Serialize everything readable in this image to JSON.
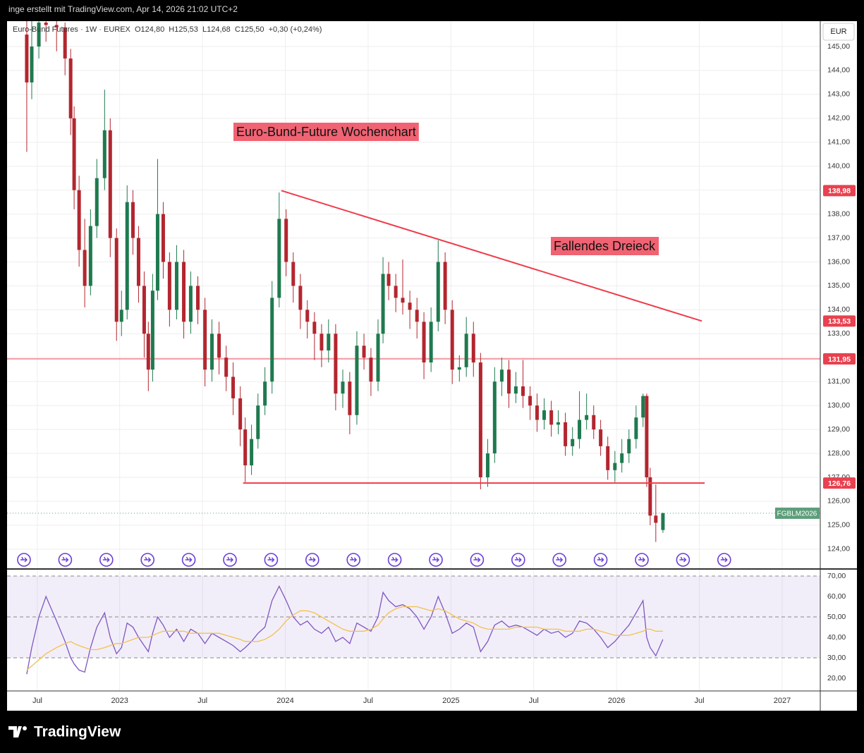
{
  "page": {
    "attribution": "inge erstellt mit TradingView.com, Apr 14, 2026 21:02 UTC+2",
    "brand": "TradingView"
  },
  "chart_data": [
    {
      "type": "candlestick",
      "legend_text": "Euro-Bund Futures · 1W · EUREX  O124,80  H125,53  L124,68  C125,50  +0,30 (+0,24%)",
      "currency": "EUR",
      "up_color": "#1f7a4f",
      "down_color": "#b3262f",
      "x": [
        2022.439,
        2022.469,
        2022.512,
        2022.555,
        2022.619,
        2022.67,
        2022.704,
        2022.725,
        2022.755,
        2022.789,
        2022.824,
        2022.862,
        2022.909,
        2022.943,
        2022.981,
        2023.011,
        2023.045,
        2023.08,
        2023.114,
        2023.148,
        2023.173,
        2023.199,
        2023.229,
        2023.263,
        2023.301,
        2023.344,
        2023.387,
        2023.429,
        2023.472,
        2023.515,
        2023.557,
        2023.6,
        2023.643,
        2023.685,
        2023.728,
        2023.758,
        2023.796,
        2023.835,
        2023.877,
        2023.92,
        2023.963,
        2024.005,
        2024.048,
        2024.091,
        2024.133,
        2024.176,
        2024.219,
        2024.261,
        2024.304,
        2024.347,
        2024.389,
        2024.432,
        2024.475,
        2024.517,
        2024.56,
        2024.59,
        2024.624,
        2024.667,
        2024.709,
        2024.752,
        2024.795,
        2024.837,
        2024.88,
        2024.923,
        2024.965,
        2025.008,
        2025.051,
        2025.093,
        2025.136,
        2025.179,
        2025.222,
        2025.264,
        2025.307,
        2025.35,
        2025.392,
        2025.435,
        2025.478,
        2025.52,
        2025.563,
        2025.606,
        2025.648,
        2025.691,
        2025.734,
        2025.776,
        2025.819,
        2025.862,
        2025.904,
        2025.947,
        2025.99,
        2026.032,
        2026.075,
        2026.118,
        2026.16,
        2026.182,
        2026.203,
        2026.237,
        2026.28
      ],
      "ohlc": [
        [
          145.5,
          146.1,
          140.6,
          143.5
        ],
        [
          143.5,
          146.1,
          142.8,
          145
        ],
        [
          145,
          146.1,
          144.5,
          146
        ],
        [
          146,
          146.1,
          145.2,
          145.9
        ],
        [
          145.9,
          146.1,
          144.8,
          145.8
        ],
        [
          145.8,
          146,
          143.8,
          144.5
        ],
        [
          144.5,
          144.9,
          141.3,
          142
        ],
        [
          142,
          142.5,
          138.2,
          139
        ],
        [
          139,
          139.6,
          135.8,
          136.5
        ],
        [
          136.5,
          137.8,
          134.1,
          135
        ],
        [
          135,
          138.2,
          134.6,
          137.5
        ],
        [
          137.5,
          140.3,
          137,
          139.5
        ],
        [
          139.5,
          143.2,
          139,
          141.5
        ],
        [
          141.5,
          142,
          136.2,
          137
        ],
        [
          137,
          137.4,
          132.7,
          133.5
        ],
        [
          133.5,
          134.8,
          132.9,
          134
        ],
        [
          134,
          139.2,
          133.6,
          138.5
        ],
        [
          138.5,
          139,
          136.3,
          137
        ],
        [
          137,
          137.5,
          134.3,
          135
        ],
        [
          135,
          135.6,
          132,
          133
        ],
        [
          133,
          133.5,
          130.6,
          131.5
        ],
        [
          131.5,
          135.5,
          131,
          134.8
        ],
        [
          134.8,
          140.3,
          134.4,
          138
        ],
        [
          138,
          138.5,
          135.3,
          136
        ],
        [
          136,
          136.4,
          133.3,
          134
        ],
        [
          134,
          136.7,
          133.6,
          136
        ],
        [
          136,
          136.5,
          132.8,
          133.5
        ],
        [
          133.5,
          135.6,
          133,
          135
        ],
        [
          135,
          135.4,
          133.4,
          134
        ],
        [
          134,
          134.5,
          130.8,
          131.5
        ],
        [
          131.5,
          133.6,
          131,
          133
        ],
        [
          133,
          133.5,
          131.3,
          132
        ],
        [
          132,
          132.5,
          130.6,
          131.2
        ],
        [
          131.2,
          131.8,
          129.6,
          130.3
        ],
        [
          130.3,
          130.8,
          128.3,
          129
        ],
        [
          129,
          129.5,
          126.8,
          127.5
        ],
        [
          127.5,
          129.2,
          127.1,
          128.6
        ],
        [
          128.6,
          130.5,
          128.2,
          130
        ],
        [
          130,
          131.6,
          129.6,
          131
        ],
        [
          131,
          135.2,
          130.5,
          134.5
        ],
        [
          134.5,
          138.9,
          134.1,
          137.8
        ],
        [
          137.8,
          138.2,
          135.4,
          136
        ],
        [
          136,
          136.4,
          134.3,
          135
        ],
        [
          135,
          135.5,
          133.2,
          134
        ],
        [
          134,
          134.4,
          132.8,
          133.5
        ],
        [
          133.5,
          133.9,
          131.9,
          133
        ],
        [
          133,
          133.4,
          131.6,
          132.3
        ],
        [
          132.3,
          133.6,
          131.8,
          133
        ],
        [
          133,
          133.4,
          129.8,
          130.5
        ],
        [
          130.5,
          131.5,
          129.9,
          131
        ],
        [
          131,
          131.4,
          128.8,
          129.6
        ],
        [
          129.6,
          133.1,
          129.2,
          132.5
        ],
        [
          132.5,
          133,
          131.5,
          132
        ],
        [
          132,
          132.4,
          130.4,
          131
        ],
        [
          131,
          133.6,
          130.6,
          133
        ],
        [
          133,
          136.2,
          132.6,
          135.5
        ],
        [
          135.5,
          136,
          134.4,
          135
        ],
        [
          135,
          135.5,
          133.9,
          134.5
        ],
        [
          134.5,
          136.1,
          133.8,
          134.3
        ],
        [
          134.3,
          134.8,
          133.2,
          134
        ],
        [
          134,
          134.5,
          132.8,
          133.5
        ],
        [
          133.5,
          133.9,
          131.1,
          131.8
        ],
        [
          131.8,
          134.1,
          131.4,
          133.5
        ],
        [
          133.5,
          136.9,
          133.1,
          136
        ],
        [
          136,
          136.4,
          133.4,
          134
        ],
        [
          134,
          134.4,
          130.9,
          131.5
        ],
        [
          131.5,
          132.1,
          131,
          131.6
        ],
        [
          131.6,
          133.7,
          131.2,
          133
        ],
        [
          133,
          133.5,
          131.2,
          131.8
        ],
        [
          131.8,
          132.2,
          126.5,
          127
        ],
        [
          127,
          128.6,
          126.6,
          128
        ],
        [
          128,
          131.6,
          127.6,
          131
        ],
        [
          131,
          132,
          130.4,
          131.5
        ],
        [
          131.5,
          131.9,
          129.9,
          130.5
        ],
        [
          130.5,
          131.4,
          130.1,
          130.8
        ],
        [
          130.8,
          131.9,
          129.9,
          130.4
        ],
        [
          130.4,
          130.8,
          129.4,
          130
        ],
        [
          130,
          130.5,
          128.9,
          129.4
        ],
        [
          129.4,
          130.3,
          129,
          129.8
        ],
        [
          129.8,
          130.2,
          128.7,
          129.2
        ],
        [
          129.2,
          129.8,
          128.8,
          129.3
        ],
        [
          129.3,
          129.7,
          127.9,
          128.3
        ],
        [
          128.3,
          129.1,
          127.9,
          128.6
        ],
        [
          128.6,
          130.6,
          128.2,
          129.4
        ],
        [
          129.4,
          130.5,
          129,
          129.6
        ],
        [
          129.6,
          130,
          128.6,
          129
        ],
        [
          129,
          129.4,
          127.9,
          128.3
        ],
        [
          128.3,
          128.7,
          126.9,
          127.3
        ],
        [
          127.3,
          128.1,
          126.8,
          127.6
        ],
        [
          127.6,
          128.6,
          127.2,
          128
        ],
        [
          128,
          129,
          127.6,
          128.6
        ],
        [
          128.6,
          130,
          128.2,
          129.5
        ],
        [
          129.5,
          130.5,
          129.1,
          130.4
        ],
        [
          130.4,
          130.5,
          126.6,
          127
        ],
        [
          127,
          127.4,
          125,
          125.4
        ],
        [
          125.4,
          126.7,
          124.3,
          125.1
        ],
        [
          124.8,
          125.53,
          124.68,
          125.5
        ]
      ],
      "xlim": [
        2022.32,
        2027.23
      ],
      "ylim": [
        123.2,
        146.06
      ],
      "yticks": [
        {
          "value": 124,
          "label": "124,00"
        },
        {
          "value": 125,
          "label": "125,00"
        },
        {
          "value": 126,
          "label": "126,00"
        },
        {
          "value": 127,
          "label": "127,00"
        },
        {
          "value": 128,
          "label": "128,00"
        },
        {
          "value": 129,
          "label": "129,00"
        },
        {
          "value": 130,
          "label": "130,00"
        },
        {
          "value": 131,
          "label": "131,00"
        },
        {
          "value": 132,
          "label": "132,00"
        },
        {
          "value": 133,
          "label": "133,00"
        },
        {
          "value": 134,
          "label": "134,00"
        },
        {
          "value": 135,
          "label": "135,00"
        },
        {
          "value": 136,
          "label": "136,00"
        },
        {
          "value": 137,
          "label": "137,00"
        },
        {
          "value": 138,
          "label": "138,00"
        },
        {
          "value": 139,
          "label": "139,00"
        },
        {
          "value": 140,
          "label": "140,00"
        },
        {
          "value": 141,
          "label": "141,00"
        },
        {
          "value": 142,
          "label": "142,00"
        },
        {
          "value": 143,
          "label": "143,00"
        },
        {
          "value": 144,
          "label": "144,00"
        },
        {
          "value": 145,
          "label": "145,00"
        }
      ],
      "grid": true,
      "annotations": [
        {
          "text": "Euro-Bund-Future Wochenchart",
          "color": "#f06372"
        },
        {
          "text": "Fallendes Dreieck",
          "color": "#f06372"
        }
      ],
      "lines": [
        {
          "x": [
            2023.976,
            2026.515
          ],
          "y": [
            138.98,
            133.53
          ],
          "color": "#ef3b4a"
        },
        {
          "x": [
            2023.745,
            2026.532
          ],
          "y": [
            126.76,
            126.76
          ],
          "color": "#ef3b4a"
        }
      ],
      "hline": {
        "value": 131.95,
        "color": "#e8414f"
      },
      "price_labels": [
        {
          "value": 138.98,
          "label": "138,98"
        },
        {
          "value": 133.53,
          "label": "133,53"
        },
        {
          "value": 131.95,
          "label": "131,95"
        },
        {
          "value": 126.76,
          "label": "126,76"
        }
      ],
      "price_label_color": "#e8414f",
      "last_price": 125.5,
      "symbol": "FGBLM2026",
      "symbol_color": "#5c9e7a"
    },
    {
      "type": "line",
      "xlim": [
        2022.32,
        2027.23
      ],
      "ylim": [
        13.8,
        73.1
      ],
      "xticks": [
        {
          "value": 2022.503,
          "label": "Jul"
        },
        2023,
        {
          "value": 2023.5,
          "label": "Jul"
        },
        2024,
        {
          "value": 2024.5,
          "label": "Jul"
        },
        2025,
        {
          "value": 2025.5,
          "label": "Jul"
        },
        2026,
        {
          "value": 2026.5,
          "label": "Jul"
        },
        2027
      ],
      "yticks": [
        {
          "value": 20,
          "label": "20,00"
        },
        {
          "value": 30,
          "label": "30,00"
        },
        {
          "value": 40,
          "label": "40,00"
        },
        {
          "value": 50,
          "label": "50,00"
        },
        {
          "value": 60,
          "label": "60,00"
        },
        {
          "value": 70,
          "label": "70,00"
        }
      ],
      "band": [
        30,
        70
      ],
      "hlines": [
        70,
        50,
        30
      ],
      "band_color": "#7e57c2",
      "series": [
        {
          "color": "#7e57c2",
          "values": [
            22,
            35,
            50,
            60,
            48,
            38,
            30,
            27,
            24,
            23,
            35,
            45,
            52,
            40,
            32,
            35,
            47,
            45,
            40,
            36,
            33,
            42,
            50,
            46,
            40,
            44,
            38,
            44,
            42,
            37,
            42,
            40,
            38,
            36,
            33,
            35,
            38,
            42,
            45,
            58,
            65,
            58,
            50,
            46,
            48,
            44,
            42,
            45,
            38,
            40,
            37,
            47,
            45,
            43,
            50,
            62,
            58,
            55,
            56,
            54,
            50,
            44,
            50,
            60,
            52,
            42,
            44,
            47,
            45,
            33,
            38,
            46,
            48,
            45,
            46,
            45,
            43,
            41,
            44,
            42,
            43,
            40,
            42,
            48,
            47,
            44,
            40,
            35,
            38,
            42,
            46,
            52,
            58,
            40,
            35,
            31,
            39
          ]
        },
        {
          "color": "#f2c14e",
          "values": [
            24,
            26,
            29,
            32,
            35,
            37,
            38,
            37,
            36,
            35,
            34,
            34,
            35,
            36,
            37,
            37,
            38,
            39,
            40,
            40,
            40,
            41,
            42,
            43,
            43,
            43,
            43,
            42,
            42,
            42,
            42,
            42,
            41,
            40,
            39,
            38,
            38,
            38,
            39,
            41,
            44,
            48,
            51,
            53,
            53,
            52,
            50,
            48,
            46,
            44,
            43,
            43,
            43,
            44,
            46,
            49,
            52,
            54,
            55,
            55,
            55,
            54,
            53,
            54,
            53,
            51,
            49,
            48,
            47,
            45,
            44,
            44,
            44,
            44,
            45,
            45,
            45,
            45,
            44,
            44,
            44,
            43,
            43,
            43,
            44,
            44,
            43,
            42,
            41,
            41,
            41,
            42,
            43,
            44,
            44,
            43,
            43
          ]
        }
      ]
    }
  ]
}
